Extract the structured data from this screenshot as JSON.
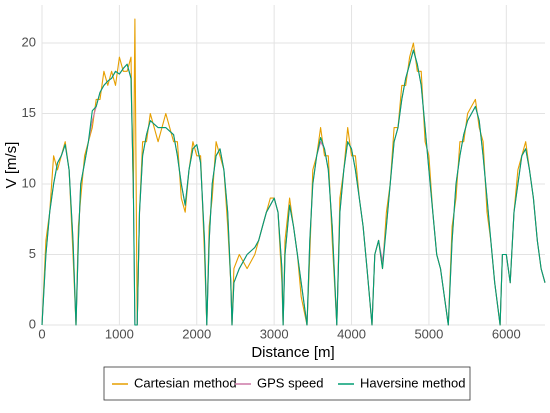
{
  "chart_data": {
    "type": "line",
    "x_label": "Distance [m]",
    "y_label": "V [m/s]",
    "x": [
      0,
      50,
      100,
      150,
      200,
      250,
      300,
      350,
      400,
      440,
      470,
      500,
      550,
      600,
      650,
      700,
      750,
      800,
      850,
      900,
      950,
      1000,
      1050,
      1100,
      1150,
      1180,
      1200,
      1230,
      1260,
      1300,
      1350,
      1400,
      1500,
      1600,
      1700,
      1750,
      1800,
      1850,
      1900,
      1950,
      2000,
      2050,
      2100,
      2130,
      2160,
      2200,
      2250,
      2300,
      2350,
      2400,
      2440,
      2455,
      2480,
      2550,
      2650,
      2750,
      2800,
      2850,
      2900,
      2950,
      3000,
      3050,
      3100,
      3115,
      3140,
      3200,
      3250,
      3300,
      3350,
      3425,
      3460,
      3500,
      3550,
      3600,
      3650,
      3700,
      3750,
      3810,
      3850,
      3900,
      3950,
      4000,
      4050,
      4100,
      4150,
      4200,
      4265,
      4300,
      4350,
      4400,
      4450,
      4500,
      4550,
      4600,
      4650,
      4700,
      4750,
      4800,
      4850,
      4900,
      4950,
      5000,
      5050,
      5100,
      5150,
      5200,
      5250,
      5300,
      5350,
      5400,
      5450,
      5500,
      5600,
      5650,
      5700,
      5750,
      5800,
      5850,
      5920,
      5950,
      6000,
      6050,
      6100,
      6150,
      6200,
      6250,
      6300,
      6350,
      6400,
      6450,
      6500
    ],
    "series": [
      {
        "name": "Cartesian method",
        "color": "#E69F00",
        "values": [
          0,
          6,
          8,
          12,
          11,
          12,
          13,
          11,
          5,
          0,
          7,
          9,
          12,
          13,
          14,
          16,
          16,
          18,
          17,
          18,
          17,
          19,
          18,
          18,
          19,
          9,
          21.7,
          0,
          8,
          13,
          13,
          15,
          13,
          15,
          13,
          13,
          9,
          8,
          11,
          13,
          12,
          12,
          5,
          0,
          7,
          9,
          13,
          12,
          11,
          7,
          3,
          0,
          4,
          5,
          4,
          5,
          6,
          7,
          8,
          9,
          9,
          8,
          3,
          0,
          6,
          9,
          7,
          5,
          2,
          0,
          5,
          11,
          12,
          14,
          12,
          12,
          6,
          0,
          9,
          11,
          14,
          12,
          12,
          9,
          7,
          4,
          0,
          5,
          6,
          4,
          8,
          10,
          14,
          14,
          17,
          17,
          19,
          20,
          18,
          18,
          13,
          12,
          8,
          5,
          4,
          2,
          0,
          7,
          9,
          13,
          13,
          15,
          16,
          14,
          13,
          8,
          6,
          3,
          0,
          5,
          5,
          3,
          8,
          11,
          12,
          13,
          11,
          9,
          6,
          4,
          3
        ]
      },
      {
        "name": "GPS speed",
        "color": "#CC79A7",
        "values": [
          0,
          5,
          8,
          10,
          11.5,
          12,
          12.8,
          11,
          6,
          0,
          6,
          10,
          11.5,
          13,
          14.5,
          15.5,
          16.5,
          17,
          17.3,
          17.5,
          18,
          17.8,
          18.2,
          18.5,
          17.5,
          10,
          0,
          0,
          8,
          12,
          13.5,
          14.5,
          14,
          14,
          13.5,
          12,
          10,
          8.5,
          11,
          12.5,
          12.8,
          11.5,
          6,
          0,
          6,
          10,
          12,
          12.5,
          11,
          8,
          3,
          0,
          3,
          4,
          5,
          5.5,
          6,
          7,
          8,
          8.5,
          9,
          8,
          4,
          0,
          5,
          8.5,
          7,
          5,
          3,
          0,
          6,
          10,
          12,
          13,
          12.5,
          11,
          7,
          0,
          8,
          11,
          13,
          12.5,
          11,
          9,
          7,
          4,
          0,
          5,
          6,
          4.5,
          7,
          10,
          13,
          14,
          16,
          17.5,
          18.5,
          19.5,
          18.5,
          17,
          14,
          11,
          8,
          5,
          4,
          2,
          0,
          6,
          10,
          12,
          13.5,
          14.5,
          15.5,
          14.5,
          12,
          9,
          6,
          3,
          0,
          5,
          5,
          3,
          8,
          10,
          12,
          12.5,
          11,
          9,
          6,
          4,
          3
        ]
      },
      {
        "name": "Haversine method",
        "color": "#009E73",
        "values": [
          0,
          5,
          8,
          10,
          11.5,
          12,
          12.8,
          11,
          6,
          0,
          6,
          10,
          11.5,
          13,
          15.2,
          15.5,
          16.5,
          17,
          17.3,
          17.5,
          18,
          17.8,
          18.2,
          18.5,
          17.5,
          10,
          0,
          0,
          8,
          12,
          13.5,
          14.5,
          14,
          14,
          13.5,
          12,
          10,
          8.5,
          11,
          12.5,
          12.8,
          11.5,
          6,
          0,
          6,
          10,
          12,
          12.5,
          11,
          8,
          3,
          0,
          3,
          4,
          5,
          5.5,
          6,
          7,
          8,
          8.5,
          9,
          8,
          4,
          0,
          5,
          8.5,
          7,
          5,
          3,
          0,
          6,
          10,
          12,
          13.3,
          12.5,
          11,
          7,
          0,
          8,
          11,
          13,
          12.5,
          11,
          9,
          7,
          4,
          0,
          5,
          6,
          4,
          7,
          10,
          13,
          14,
          16,
          17.5,
          18.5,
          19.5,
          18.5,
          17,
          14,
          11,
          8,
          5,
          4,
          2,
          0,
          6,
          10,
          12,
          13.5,
          14.5,
          15.5,
          14.5,
          12,
          9,
          6,
          3,
          0,
          5,
          5,
          3,
          8,
          10,
          12,
          12.5,
          11,
          9,
          6,
          4,
          3
        ]
      }
    ],
    "xlim": [
      0,
      6500
    ],
    "xticks": [
      0,
      1000,
      2000,
      3000,
      4000,
      5000,
      6000
    ],
    "ylim": [
      0,
      22.7
    ],
    "yticks": [
      0,
      5,
      10,
      15,
      20
    ],
    "grid": true,
    "legend": "bottom"
  }
}
